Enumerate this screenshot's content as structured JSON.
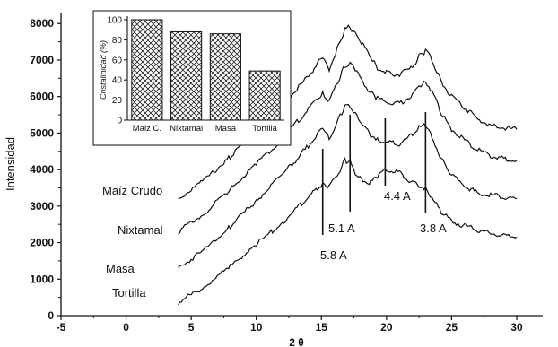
{
  "chart_data": [
    {
      "type": "line",
      "xlabel": "2 θ",
      "ylabel": "Intensidad",
      "xlim": [
        -5,
        32
      ],
      "ylim": [
        0,
        8300
      ],
      "xticks": [
        -5,
        0,
        5,
        10,
        15,
        20,
        25,
        30
      ],
      "yticks": [
        0,
        1000,
        2000,
        3000,
        4000,
        5000,
        6000,
        7000,
        8000
      ],
      "series": [
        {
          "name": "Maíz Crudo",
          "x": [
            4,
            6,
            8,
            10,
            12,
            13,
            14,
            14.7,
            15.1,
            15.6,
            16.2,
            16.8,
            17.2,
            17.6,
            18.2,
            18.8,
            19.3,
            20,
            21,
            22,
            22.5,
            23,
            23.5,
            24.2,
            25,
            26,
            27,
            28,
            29,
            30
          ],
          "y": [
            3200,
            3700,
            4350,
            5050,
            5750,
            6150,
            6550,
            6900,
            7050,
            6750,
            7300,
            7850,
            7900,
            7750,
            7400,
            7050,
            6800,
            6650,
            6600,
            6800,
            7100,
            7250,
            7000,
            6400,
            6000,
            5700,
            5400,
            5200,
            5150,
            5100
          ]
        },
        {
          "name": "Nixtamal",
          "x": [
            4,
            6,
            8,
            10,
            12,
            13,
            14,
            14.7,
            15.1,
            15.6,
            16.2,
            16.8,
            17.2,
            17.6,
            18.2,
            18.8,
            19.3,
            20,
            21,
            22,
            22.5,
            23,
            23.5,
            24.2,
            25,
            26,
            27,
            28,
            29,
            30
          ],
          "y": [
            2300,
            2800,
            3450,
            4150,
            4850,
            5250,
            5650,
            5950,
            6100,
            5850,
            6350,
            6850,
            6900,
            6750,
            6400,
            6100,
            5950,
            5850,
            5800,
            6050,
            6300,
            6400,
            6150,
            5550,
            5100,
            4800,
            4550,
            4350,
            4300,
            4250
          ]
        },
        {
          "name": "Masa",
          "x": [
            4,
            6,
            8,
            10,
            12,
            13,
            14,
            14.7,
            15.1,
            15.6,
            16.2,
            16.8,
            17.2,
            17.6,
            18.2,
            18.8,
            19.3,
            20,
            21,
            22,
            22.5,
            23,
            23.5,
            24.2,
            25,
            26,
            27,
            28,
            29,
            30
          ],
          "y": [
            1300,
            1800,
            2450,
            3150,
            3850,
            4250,
            4650,
            5000,
            5150,
            4850,
            5300,
            5700,
            5750,
            5550,
            5200,
            4950,
            4850,
            4750,
            4700,
            4950,
            5150,
            5200,
            4900,
            4300,
            3850,
            3550,
            3350,
            3300,
            3250,
            3200
          ]
        },
        {
          "name": "Tortilla",
          "x": [
            4,
            6,
            8,
            10,
            12,
            13,
            14,
            14.7,
            15.1,
            15.6,
            16.2,
            16.8,
            17.2,
            17.6,
            18.2,
            18.8,
            19.3,
            20,
            21,
            22,
            22.5,
            23,
            23.5,
            24.2,
            25,
            26,
            27,
            28,
            29,
            30
          ],
          "y": [
            350,
            800,
            1350,
            1950,
            2550,
            2900,
            3250,
            3500,
            3600,
            3550,
            3850,
            4250,
            4200,
            3900,
            3700,
            3650,
            3800,
            4000,
            3900,
            3650,
            3550,
            3500,
            3200,
            2850,
            2600,
            2450,
            2350,
            2250,
            2200,
            2150
          ]
        }
      ],
      "curve_labels": [
        "Maíz Crudo",
        "Nixtamal",
        "Masa",
        "Tortilla"
      ],
      "peak_annotations": [
        {
          "x": 15.1,
          "label": "5.8 A"
        },
        {
          "x": 17.2,
          "label": "5.1 A"
        },
        {
          "x": 19.9,
          "label": "4.4 A"
        },
        {
          "x": 23.0,
          "label": "3.8 A"
        }
      ],
      "grid": false
    },
    {
      "type": "bar",
      "categories": [
        "Maiz C.",
        "Nixtamal",
        "Masa",
        "Tortilla"
      ],
      "values": [
        100,
        88,
        86,
        49
      ],
      "ylabel": "Cristalinidad (%)",
      "ylim": [
        0,
        100
      ],
      "yticks": [
        0,
        20,
        40,
        60,
        80,
        100
      ],
      "fill": "crosshatch"
    }
  ],
  "colors": {
    "line": "#111111",
    "hatch": "#222222",
    "bar_bg": "#ffffff"
  }
}
